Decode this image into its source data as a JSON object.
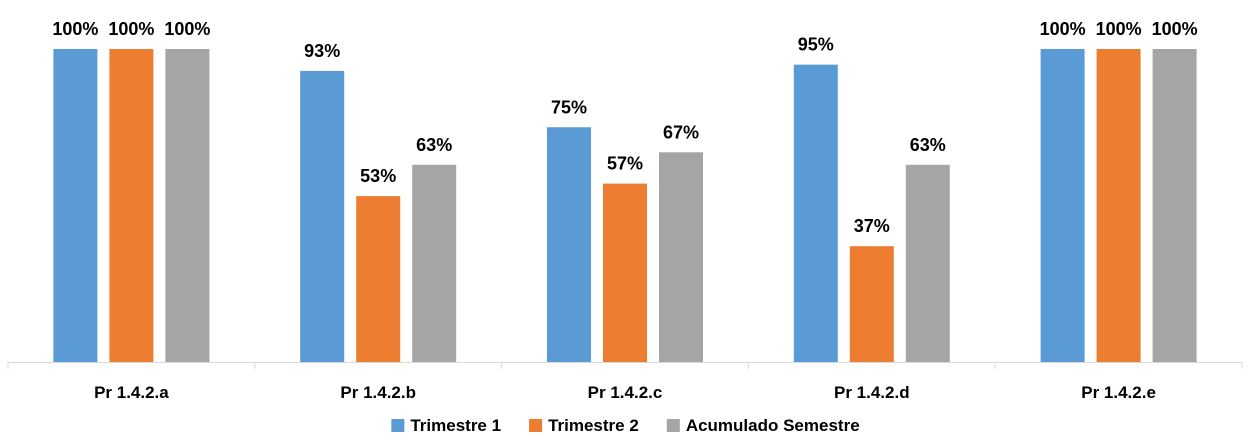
{
  "chart_data": {
    "type": "bar",
    "title": "",
    "xlabel": "",
    "ylabel": "",
    "ylim": [
      0,
      100
    ],
    "grid": false,
    "legend_position": "bottom",
    "value_format": "%",
    "categories": [
      "Pr 1.4.2.a",
      "Pr 1.4.2.b",
      "Pr 1.4.2.c",
      "Pr 1.4.2.d",
      "Pr 1.4.2.e"
    ],
    "series": [
      {
        "name": "Trimestre 1",
        "color": "#5B9BD5",
        "values": [
          100,
          93,
          75,
          95,
          100
        ]
      },
      {
        "name": "Trimestre 2",
        "color": "#ED7D31",
        "values": [
          100,
          53,
          57,
          37,
          100
        ]
      },
      {
        "name": "Acumulado Semestre",
        "color": "#A5A5A5",
        "values": [
          100,
          63,
          67,
          63,
          100
        ]
      }
    ]
  }
}
